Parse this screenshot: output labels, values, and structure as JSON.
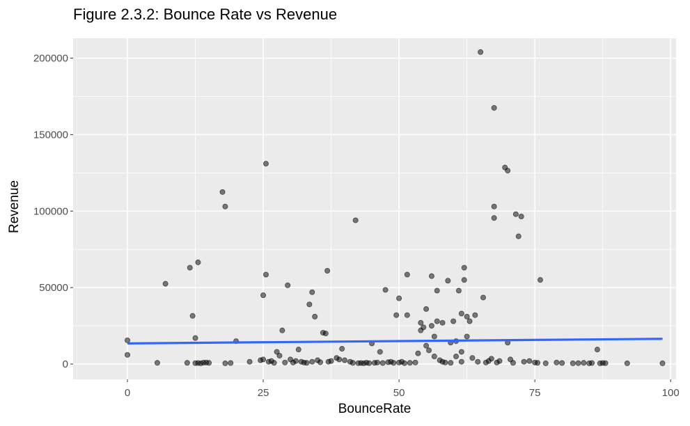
{
  "chart_data": {
    "type": "scatter",
    "title": "Figure 2.3.2: Bounce Rate vs Revenue",
    "xlabel": "BounceRate",
    "ylabel": "Revenue",
    "xlim": [
      -10,
      101
    ],
    "ylim": [
      -10000,
      213000
    ],
    "xticks": [
      0,
      25,
      50,
      75,
      100
    ],
    "yticks": [
      0,
      50000,
      100000,
      150000,
      200000
    ],
    "grid": true,
    "point_color": "#000000",
    "trend_color": "#3366FF",
    "panel_color": "#EBEBEB",
    "trend_line": {
      "x": [
        0,
        98.5
      ],
      "y": [
        13500,
        16500
      ]
    },
    "points": [
      [
        0,
        15500
      ],
      [
        0,
        6000
      ],
      [
        5.5,
        800
      ],
      [
        7,
        52500
      ],
      [
        11,
        800
      ],
      [
        11.5,
        63000
      ],
      [
        12,
        31500
      ],
      [
        12.5,
        17000
      ],
      [
        12.5,
        600
      ],
      [
        13,
        66500
      ],
      [
        13,
        700
      ],
      [
        13.5,
        500
      ],
      [
        14,
        900
      ],
      [
        14.5,
        1000
      ],
      [
        15,
        800
      ],
      [
        17.5,
        112500
      ],
      [
        18,
        103000
      ],
      [
        18,
        500
      ],
      [
        19,
        700
      ],
      [
        20,
        15000
      ],
      [
        22.5,
        1500
      ],
      [
        24.5,
        2500
      ],
      [
        25,
        45000
      ],
      [
        25,
        3000
      ],
      [
        25.5,
        131000
      ],
      [
        25.5,
        58500
      ],
      [
        26,
        1500
      ],
      [
        26.5,
        2000
      ],
      [
        27,
        800
      ],
      [
        27.5,
        8000
      ],
      [
        28,
        5500
      ],
      [
        28.5,
        22000
      ],
      [
        29,
        1000
      ],
      [
        29.5,
        51500
      ],
      [
        30,
        3000
      ],
      [
        30.5,
        1000
      ],
      [
        31,
        2000
      ],
      [
        31.5,
        9500
      ],
      [
        32,
        1500
      ],
      [
        32.5,
        1000
      ],
      [
        33,
        800
      ],
      [
        33.5,
        39000
      ],
      [
        34,
        47000
      ],
      [
        34,
        1500
      ],
      [
        34.5,
        31000
      ],
      [
        35,
        2500
      ],
      [
        35.5,
        1200
      ],
      [
        36,
        20500
      ],
      [
        36.5,
        20000
      ],
      [
        36.8,
        61000
      ],
      [
        37,
        1500
      ],
      [
        37.5,
        2000
      ],
      [
        38.5,
        4000
      ],
      [
        39,
        3000
      ],
      [
        39.5,
        10000
      ],
      [
        40,
        2500
      ],
      [
        41,
        1500
      ],
      [
        41.5,
        800
      ],
      [
        42,
        94000
      ],
      [
        42.5,
        600
      ],
      [
        43,
        700
      ],
      [
        43.5,
        500
      ],
      [
        44,
        900
      ],
      [
        44.5,
        600
      ],
      [
        45,
        13500
      ],
      [
        45.5,
        800
      ],
      [
        46,
        1000
      ],
      [
        46.5,
        8000
      ],
      [
        47,
        700
      ],
      [
        47.5,
        48500
      ],
      [
        48,
        1200
      ],
      [
        48.5,
        1500
      ],
      [
        49,
        800
      ],
      [
        49.5,
        32000
      ],
      [
        50,
        43000
      ],
      [
        50,
        1000
      ],
      [
        50.5,
        1500
      ],
      [
        51,
        600
      ],
      [
        51.5,
        58500
      ],
      [
        51.5,
        32000
      ],
      [
        52,
        800
      ],
      [
        53,
        1000
      ],
      [
        53.5,
        7000
      ],
      [
        54,
        27000
      ],
      [
        54,
        22000
      ],
      [
        54.5,
        24000
      ],
      [
        55,
        36000
      ],
      [
        55,
        12000
      ],
      [
        55.5,
        9000
      ],
      [
        56,
        57500
      ],
      [
        56,
        25000
      ],
      [
        56.5,
        18000
      ],
      [
        56.5,
        5000
      ],
      [
        57,
        48000
      ],
      [
        57,
        28000
      ],
      [
        57.5,
        2500
      ],
      [
        58,
        27000
      ],
      [
        58,
        1500
      ],
      [
        58.5,
        1000
      ],
      [
        59,
        54500
      ],
      [
        59.5,
        14000
      ],
      [
        59.5,
        800
      ],
      [
        60,
        28000
      ],
      [
        60.5,
        15000
      ],
      [
        60.5,
        5000
      ],
      [
        61,
        48000
      ],
      [
        61.5,
        33000
      ],
      [
        61.5,
        8000
      ],
      [
        61.5,
        1500
      ],
      [
        62,
        63000
      ],
      [
        62,
        55000
      ],
      [
        62.5,
        31000
      ],
      [
        62.5,
        18000
      ],
      [
        63,
        28000
      ],
      [
        63.5,
        4000
      ],
      [
        64,
        32000
      ],
      [
        64.5,
        1500
      ],
      [
        65,
        204000
      ],
      [
        65.5,
        43500
      ],
      [
        66,
        1000
      ],
      [
        66.5,
        2000
      ],
      [
        67,
        3500
      ],
      [
        67.5,
        167500
      ],
      [
        67.5,
        103000
      ],
      [
        67.5,
        95500
      ],
      [
        68,
        1000
      ],
      [
        68.5,
        2000
      ],
      [
        69.5,
        128500
      ],
      [
        70,
        126500
      ],
      [
        70,
        14000
      ],
      [
        70.5,
        3000
      ],
      [
        71,
        800
      ],
      [
        71.5,
        98000
      ],
      [
        72,
        83500
      ],
      [
        72.5,
        96500
      ],
      [
        73,
        1500
      ],
      [
        74,
        2000
      ],
      [
        75,
        1000
      ],
      [
        75.5,
        800
      ],
      [
        76,
        55000
      ],
      [
        77,
        500
      ],
      [
        79,
        1000
      ],
      [
        80,
        700
      ],
      [
        82,
        500
      ],
      [
        83,
        600
      ],
      [
        84,
        800
      ],
      [
        85,
        500
      ],
      [
        85.5,
        700
      ],
      [
        86.5,
        9500
      ],
      [
        87,
        500
      ],
      [
        87.5,
        700
      ],
      [
        88,
        600
      ],
      [
        92,
        500
      ],
      [
        98.5,
        500
      ]
    ]
  }
}
